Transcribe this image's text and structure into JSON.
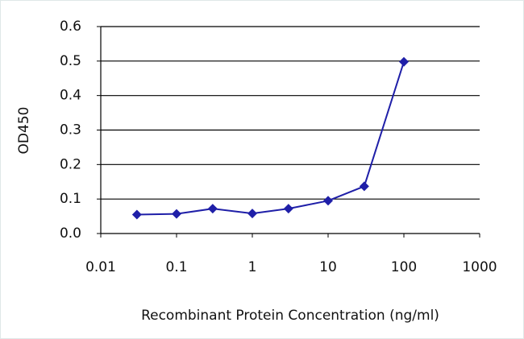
{
  "chart_data": {
    "type": "line",
    "x_label": "Recombinant Protein Concentration (ng/ml)",
    "y_label": "OD450",
    "x": [
      0.03,
      0.1,
      0.3,
      1,
      3,
      10,
      30,
      100
    ],
    "series": [
      {
        "color": "#1f1fa8",
        "values": [
          0.055,
          0.057,
          0.072,
          0.058,
          0.072,
          0.095,
          0.137,
          0.498
        ]
      }
    ],
    "xlim": [
      0.01,
      1000
    ],
    "xticks": [
      0.01,
      0.1,
      1,
      10,
      100,
      1000
    ],
    "xscale": "log",
    "ylim": [
      0,
      0.6
    ],
    "yticks": [
      {
        "value": 0,
        "label": "0.0"
      },
      0.1,
      0.2,
      0.3,
      0.4,
      0.5,
      0.6
    ],
    "grid": true
  }
}
